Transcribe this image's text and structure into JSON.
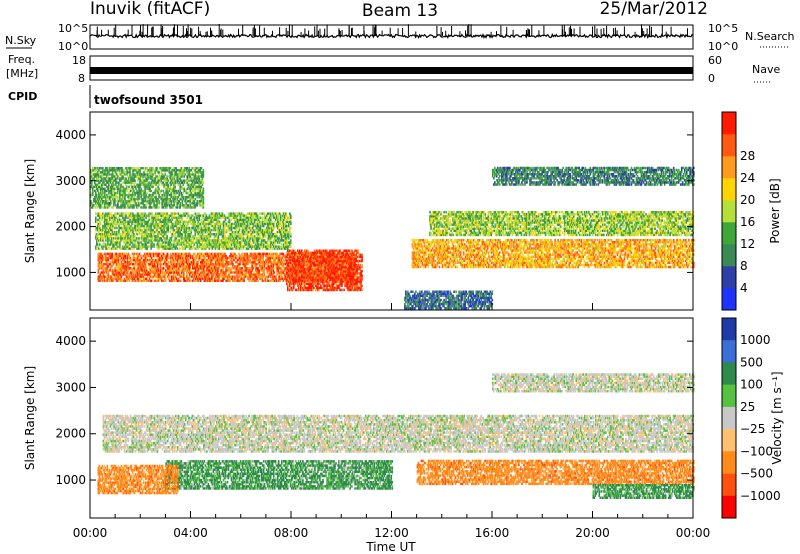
{
  "header": {
    "station": "Inuvik (fitACF)",
    "beam": "Beam 13",
    "date": "25/Mar/2012"
  },
  "top_panels": {
    "nsky_label": "N.Sky",
    "nsearch_label": "N.Search",
    "freq_label_line1": "Freq.",
    "freq_label_line2": "[MHz]",
    "nave_label": "Nave",
    "cpid_label": "CPID",
    "cpid_value": "twofsound 3501",
    "noise_left_ticks": [
      "10^5",
      "10^0"
    ],
    "noise_right_ticks": [
      "10^5",
      "10^0"
    ],
    "freq_left_ticks": [
      "18",
      "8"
    ],
    "freq_right_ticks": [
      "60",
      "0"
    ]
  },
  "chart_data": [
    {
      "type": "heatmap",
      "panel": "power",
      "ylabel": "Slant Range [km]",
      "xlabel": "",
      "ylim": [
        180,
        4500
      ],
      "yticks": [
        "1000",
        "2000",
        "3000",
        "4000"
      ],
      "colorbar_label": "Power [dB]",
      "colorbar_ticks": [
        "4",
        "8",
        "12",
        "16",
        "20",
        "24",
        "28"
      ],
      "colorbar_colors": [
        "#1f33ff",
        "#2e3fa8",
        "#3a8a55",
        "#3fa63a",
        "#b5e03a",
        "#ffd400",
        "#ff9a1a",
        "#ff5a10",
        "#ff1a00"
      ],
      "bands": [
        {
          "t0": 0.3,
          "t1": 10.5,
          "r0": 800,
          "r1": 1400,
          "value": 26
        },
        {
          "t0": 7.8,
          "t1": 10.8,
          "r0": 600,
          "r1": 1500,
          "value": 29
        },
        {
          "t0": 0.2,
          "t1": 8.0,
          "r0": 1500,
          "r1": 2300,
          "value": 14
        },
        {
          "t0": 0.0,
          "t1": 4.5,
          "r0": 2400,
          "r1": 3300,
          "value": 12
        },
        {
          "t0": 12.8,
          "t1": 24.0,
          "r0": 1100,
          "r1": 1700,
          "value": 22
        },
        {
          "t0": 13.5,
          "t1": 24.0,
          "r0": 1800,
          "r1": 2300,
          "value": 15
        },
        {
          "t0": 16.0,
          "t1": 24.0,
          "r0": 2900,
          "r1": 3300,
          "value": 9
        },
        {
          "t0": 12.5,
          "t1": 16.0,
          "r0": 200,
          "r1": 600,
          "value": 7
        }
      ]
    },
    {
      "type": "heatmap",
      "panel": "velocity",
      "ylabel": "Slant Range [km]",
      "xlabel": "Time UT",
      "ylim": [
        180,
        4500
      ],
      "yticks": [
        "1000",
        "2000",
        "3000",
        "4000"
      ],
      "xticks": [
        "00:00",
        "04:00",
        "08:00",
        "12:00",
        "16:00",
        "20:00",
        "00:00"
      ],
      "colorbar_label": "Velocity [m s⁻¹]",
      "colorbar_ticks": [
        "1000",
        "500",
        "100",
        "25",
        "−25",
        "−100",
        "−500",
        "−1000"
      ],
      "colorbar_colors": [
        "#1e3ca8",
        "#3a6fd8",
        "#2e8a4a",
        "#55c240",
        "#c8c8c8",
        "#ffc070",
        "#ff8c1a",
        "#ff5010",
        "#ff0000"
      ],
      "bands": [
        {
          "t0": 3.0,
          "t1": 12.0,
          "r0": 800,
          "r1": 1400,
          "value": 150
        },
        {
          "t0": 0.3,
          "t1": 3.5,
          "r0": 700,
          "r1": 1300,
          "value": -300
        },
        {
          "t0": 0.5,
          "t1": 24.0,
          "r0": 1600,
          "r1": 2400,
          "value": 0
        },
        {
          "t0": 13.0,
          "t1": 24.0,
          "r0": 900,
          "r1": 1400,
          "value": -300
        },
        {
          "t0": 16.0,
          "t1": 24.0,
          "r0": 2900,
          "r1": 3300,
          "value": 0
        },
        {
          "t0": 20.0,
          "t1": 24.0,
          "r0": 600,
          "r1": 900,
          "value": 150
        }
      ]
    }
  ]
}
